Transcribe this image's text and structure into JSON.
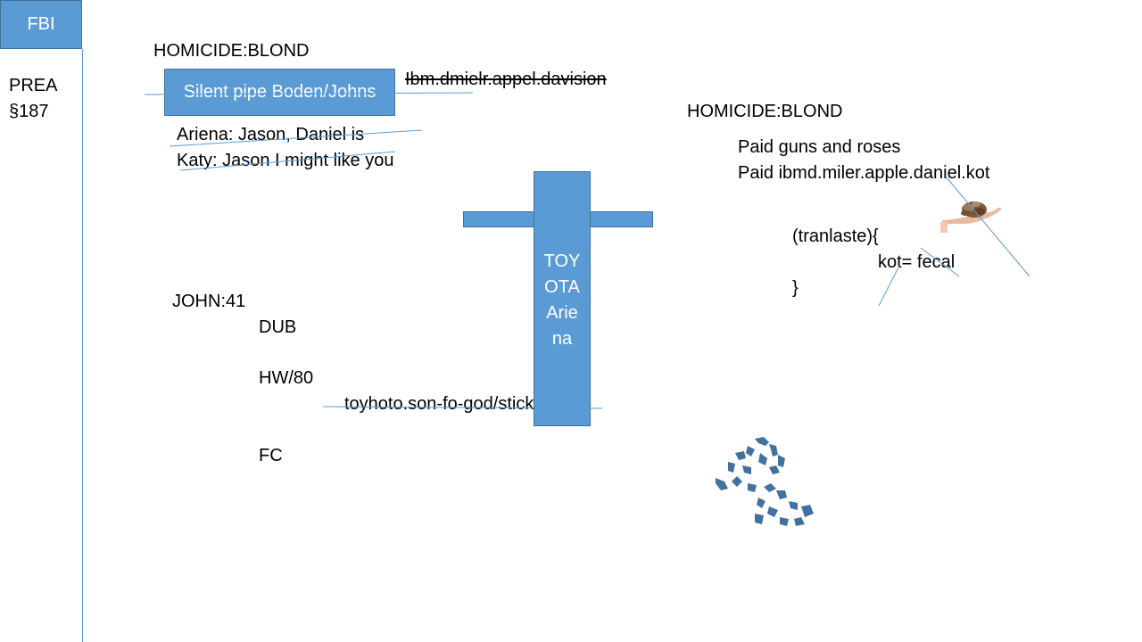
{
  "sidebar": {
    "badge": "FBI",
    "lines": [
      "PREA",
      "§187"
    ]
  },
  "left": {
    "heading": "HOMICIDE:BLOND",
    "box_label": "Silent pipe Boden/Johns",
    "struck_text": "Ibm.dmielr.appel.davision",
    "dialog": [
      "Ariena: Jason, Daniel is",
      "Katy: Jason I might like you"
    ],
    "john": "JOHN:41",
    "dub": "DUB",
    "hw": "HW/80",
    "url": "toyhoto.son-fo-god/sticker",
    "fc": "FC"
  },
  "cross": {
    "lines": [
      "TOY",
      "OTA",
      "Arie",
      "na"
    ]
  },
  "right": {
    "heading": "HOMICIDE:BLOND",
    "paid": [
      "Paid guns and roses",
      "Paid ibmd.miler.apple.daniel.kot"
    ],
    "code": [
      "(tranlaste){",
      "kot= fecal",
      "}"
    ]
  },
  "colors": {
    "accent": "#5b9bd5",
    "accent_border": "#41719c",
    "shape_fill": "#41719c"
  },
  "icons": {
    "hand": "hand-with-coins-icon",
    "scribble": "scribble-shape-icon"
  }
}
